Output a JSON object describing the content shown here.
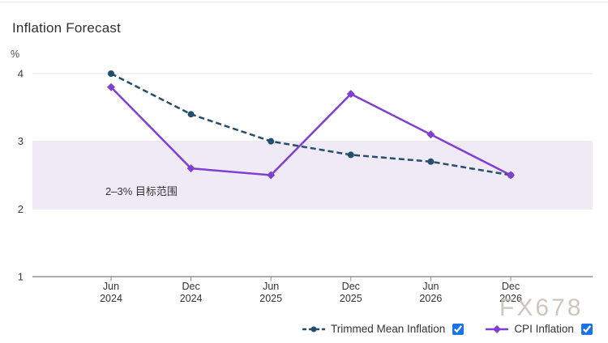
{
  "page": {
    "watermark": "FX678"
  },
  "chart_data": {
    "type": "line",
    "title": "Inflation Forecast",
    "xlabel": "",
    "ylabel": "%",
    "categories": [
      "Jun 2024",
      "Dec 2024",
      "Jun 2025",
      "Dec 2025",
      "Jun 2026",
      "Dec 2026"
    ],
    "series": [
      {
        "name": "Trimmed Mean Inflation",
        "values": [
          4.0,
          3.4,
          3.0,
          2.8,
          2.7,
          2.5
        ],
        "color": "#234e6f",
        "line_style": "dashed",
        "marker": "circle",
        "visible": true
      },
      {
        "name": "CPI Inflation",
        "values": [
          3.8,
          2.6,
          2.5,
          3.7,
          3.1,
          2.5
        ],
        "color": "#7e3fd2",
        "line_style": "solid",
        "marker": "diamond",
        "visible": true
      }
    ],
    "yticks": [
      1,
      2,
      3,
      4
    ],
    "ylim": [
      1,
      4.3
    ],
    "grid": true,
    "legend_position": "bottom",
    "band": {
      "from": 2,
      "to": 3,
      "label": "2–3% 目标范围",
      "color": "#efeaf6"
    },
    "colors": {
      "gridline": "#e6e6e6",
      "axis_line": "#7d7d7d",
      "tick": "#8a8a8a",
      "checkbox": "#1a73e8"
    }
  }
}
